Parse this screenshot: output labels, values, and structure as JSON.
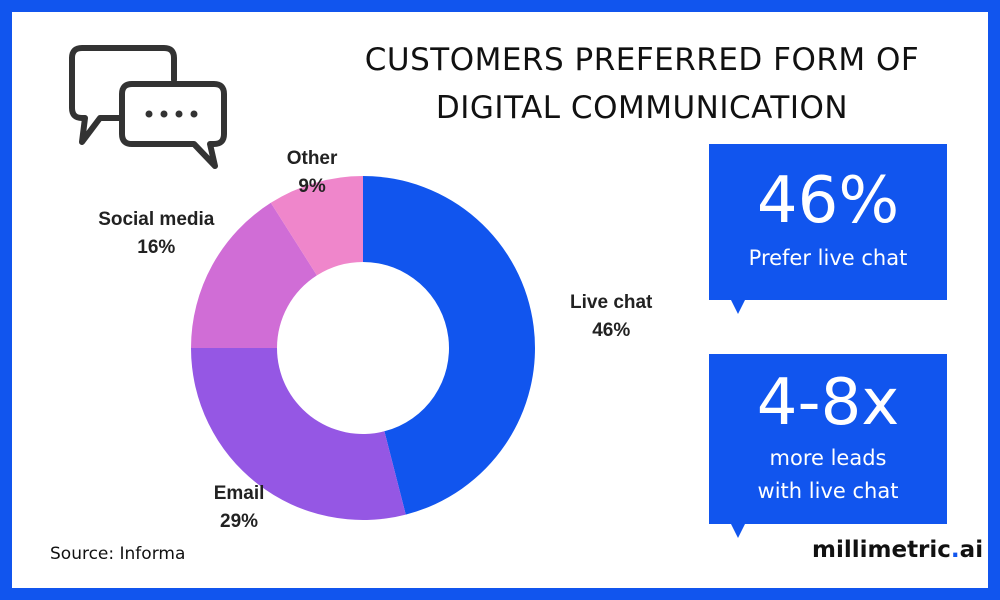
{
  "title": {
    "line1": "CUSTOMERS PREFERRED FORM OF",
    "line2": "DIGITAL COMMUNICATION"
  },
  "icon": "chat-bubbles-icon",
  "chart_data": {
    "type": "pie",
    "style": "donut",
    "categories": [
      "Live chat",
      "Email",
      "Social media",
      "Other"
    ],
    "values": [
      46,
      29,
      16,
      9
    ],
    "value_labels": [
      "46%",
      "29%",
      "16%",
      "9%"
    ],
    "colors": [
      "#1155ee",
      "#9557e4",
      "#d06dd6",
      "#ef86cb"
    ],
    "start": "top",
    "direction": "clockwise"
  },
  "callouts": [
    {
      "big": "46%",
      "lines": [
        "Prefer live chat"
      ]
    },
    {
      "big": "4-8x",
      "lines": [
        "more leads",
        "with live chat"
      ]
    }
  ],
  "source": "Source: Informa",
  "brand": {
    "name": "millimetric",
    "dot": ".",
    "suffix": "ai"
  },
  "colors": {
    "frame": "#1155ee",
    "callout": "#1155ee"
  }
}
